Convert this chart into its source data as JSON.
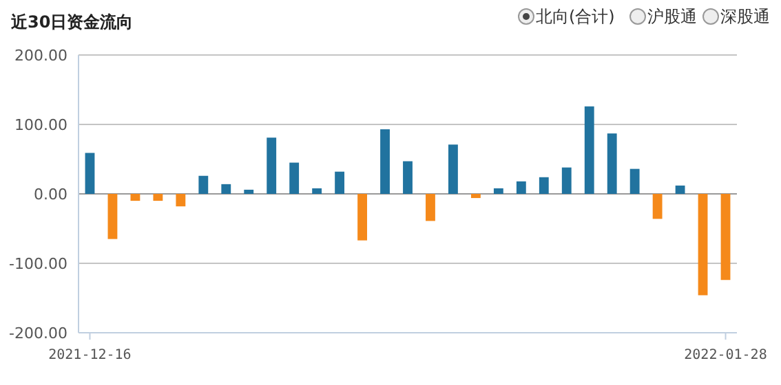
{
  "chart_data": {
    "type": "bar",
    "title": "近30日资金流向",
    "categories": [
      "2021-12-16",
      null,
      null,
      null,
      null,
      null,
      null,
      null,
      null,
      null,
      null,
      null,
      null,
      null,
      null,
      null,
      null,
      null,
      null,
      null,
      null,
      null,
      null,
      null,
      null,
      null,
      null,
      null,
      "2022-01-28"
    ],
    "series": [
      {
        "name": "北向(合计)",
        "colors": [
          "#21739f",
          "#f5891a",
          "#f5891a",
          "#f5891a",
          "#f5891a",
          "#21739f",
          "#21739f",
          "#21739f",
          "#21739f",
          "#21739f",
          "#21739f",
          "#21739f",
          "#f5891a",
          "#21739f",
          "#21739f",
          "#f5891a",
          "#21739f",
          "#f5891a",
          "#21739f",
          "#21739f",
          "#21739f",
          "#21739f",
          "#21739f",
          "#21739f",
          "#21739f",
          "#f5891a",
          "#21739f",
          "#f5891a",
          "#f5891a"
        ],
        "values": [
          59,
          -65,
          -10,
          -10,
          -18,
          26,
          14,
          6,
          81,
          45,
          8,
          32,
          -67,
          93,
          47,
          -39,
          71,
          -6,
          8,
          18,
          24,
          38,
          126,
          87,
          36,
          -36,
          12,
          -146,
          -124
        ]
      }
    ],
    "annotations": [
      "沪股通",
      "深股通"
    ],
    "legend": "top right",
    "grid": "y",
    "ylim": [
      -200,
      200
    ],
    "yticks": [
      {
        "value": 200,
        "label": "200.00"
      },
      {
        "value": 100,
        "label": "100.00"
      },
      {
        "value": 0,
        "label": "0.00"
      },
      {
        "value": -100,
        "label": "-100.00"
      },
      {
        "value": -200,
        "label": "-200.00"
      }
    ]
  }
}
